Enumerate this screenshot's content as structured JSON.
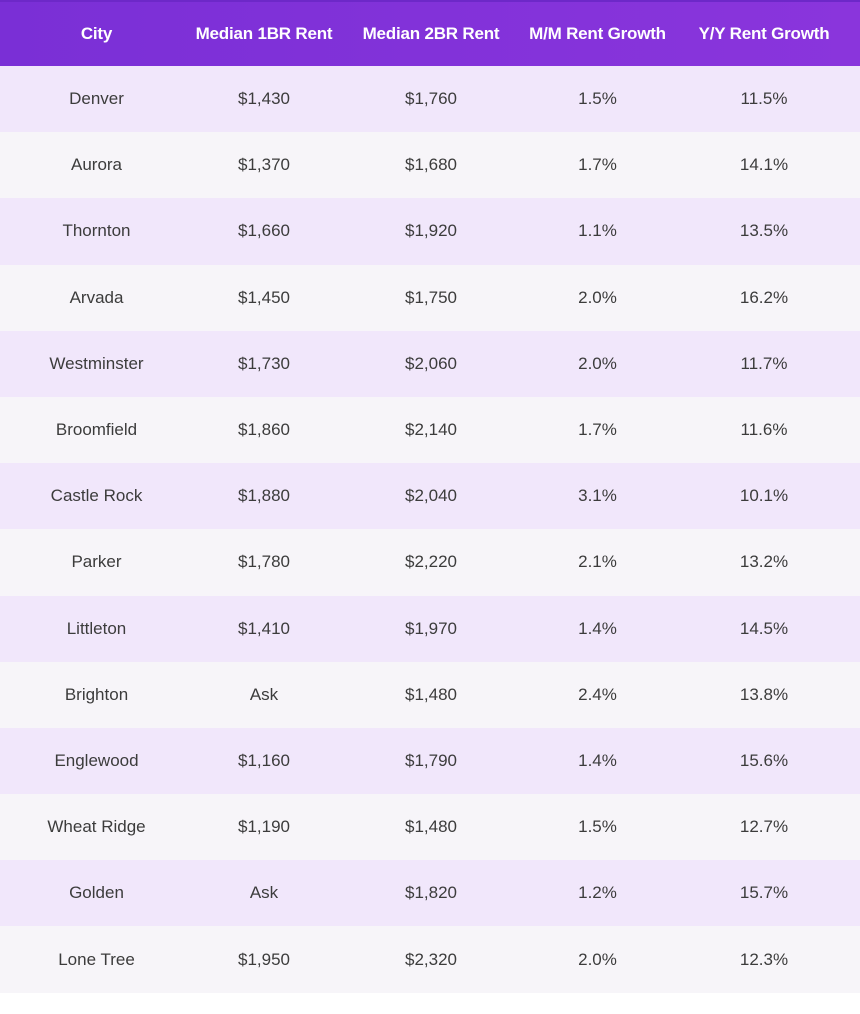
{
  "columns": [
    "City",
    "Median 1BR Rent",
    "Median 2BR Rent",
    "M/M Rent Growth",
    "Y/Y Rent Growth"
  ],
  "rows": [
    [
      "Denver",
      "$1,430",
      "$1,760",
      "1.5%",
      "11.5%"
    ],
    [
      "Aurora",
      "$1,370",
      "$1,680",
      "1.7%",
      "14.1%"
    ],
    [
      "Thornton",
      "$1,660",
      "$1,920",
      "1.1%",
      "13.5%"
    ],
    [
      "Arvada",
      "$1,450",
      "$1,750",
      "2.0%",
      "16.2%"
    ],
    [
      "Westminster",
      "$1,730",
      "$2,060",
      "2.0%",
      "11.7%"
    ],
    [
      "Broomfield",
      "$1,860",
      "$2,140",
      "1.7%",
      "11.6%"
    ],
    [
      "Castle Rock",
      "$1,880",
      "$2,040",
      "3.1%",
      "10.1%"
    ],
    [
      "Parker",
      "$1,780",
      "$2,220",
      "2.1%",
      "13.2%"
    ],
    [
      "Littleton",
      "$1,410",
      "$1,970",
      "1.4%",
      "14.5%"
    ],
    [
      "Brighton",
      "Ask",
      "$1,480",
      "2.4%",
      "13.8%"
    ],
    [
      "Englewood",
      "$1,160",
      "$1,790",
      "1.4%",
      "15.6%"
    ],
    [
      "Wheat Ridge",
      "$1,190",
      "$1,480",
      "1.5%",
      "12.7%"
    ],
    [
      "Golden",
      "Ask",
      "$1,820",
      "1.2%",
      "15.7%"
    ],
    [
      "Lone Tree",
      "$1,950",
      "$2,320",
      "2.0%",
      "12.3%"
    ]
  ],
  "colors": {
    "header_bg": "#7a2fd6",
    "header_text": "#ffffff",
    "row_odd": "#f1e7fb",
    "row_even": "#f7f5f9",
    "cell_text": "#3c3c3c"
  }
}
